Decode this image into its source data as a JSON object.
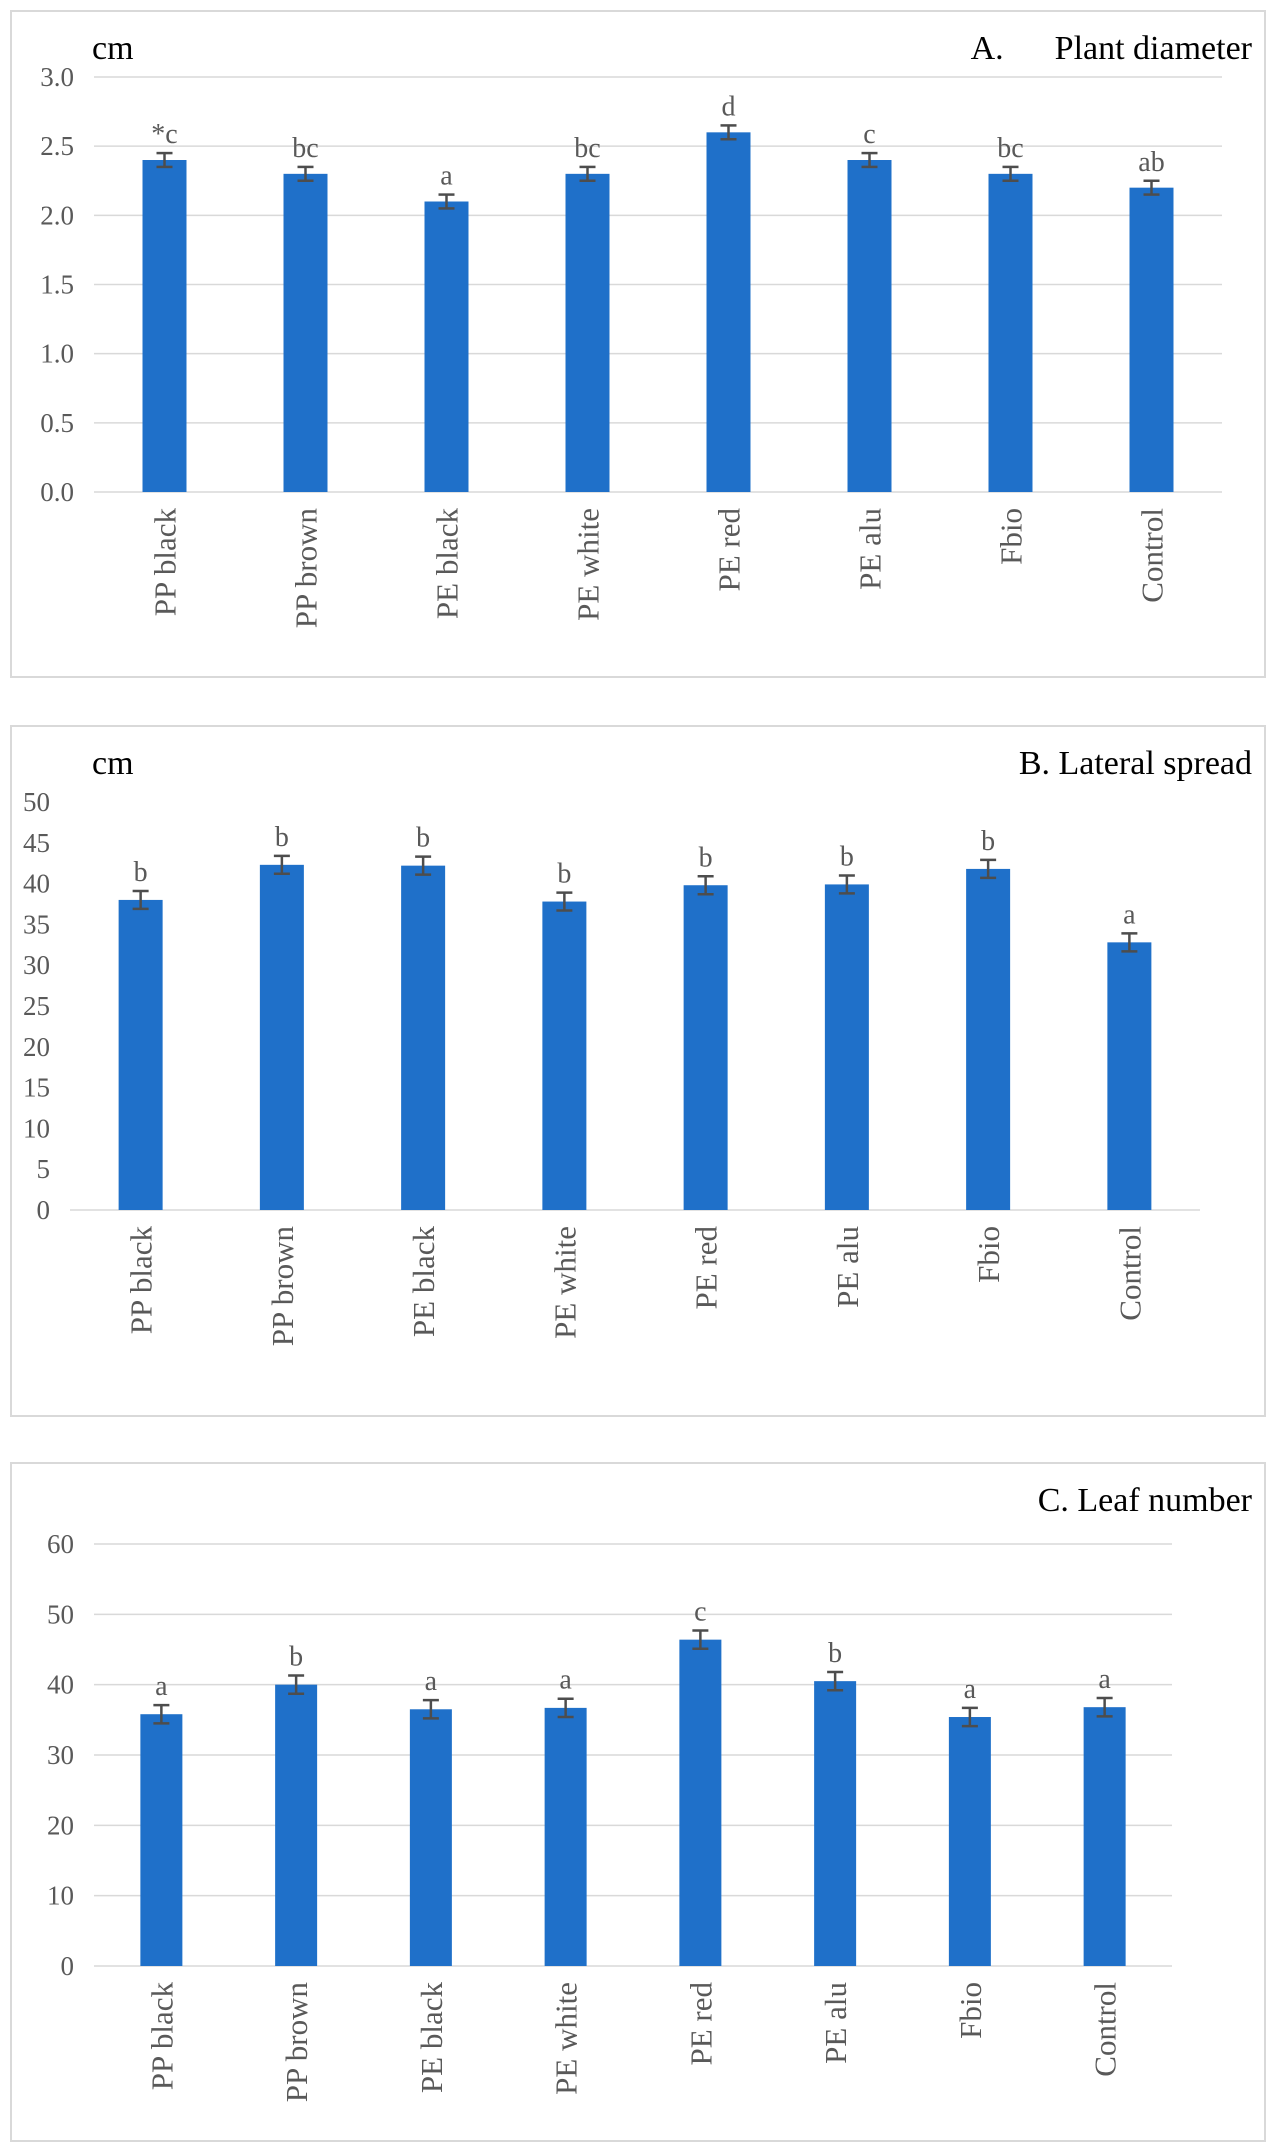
{
  "colors": {
    "bar": "#1f70c9",
    "error_bar": "#4d4d4d",
    "grid": "#d9d9d9",
    "text": "#595959",
    "title": "#000000"
  },
  "chart_data": [
    {
      "type": "bar",
      "title": "A.      Plant diameter",
      "ylabel": "cm",
      "categories": [
        "PP black",
        "PP brown",
        "PE black",
        "PE white",
        "PE red",
        "PE alu",
        "Fbio",
        "Control"
      ],
      "values": [
        2.4,
        2.3,
        2.1,
        2.3,
        2.6,
        2.4,
        2.3,
        2.2
      ],
      "errors": [
        0.05,
        0.05,
        0.05,
        0.05,
        0.05,
        0.05,
        0.05,
        0.05
      ],
      "letters": [
        "*c",
        "bc",
        "a",
        "bc",
        "d",
        "c",
        "bc",
        "ab"
      ],
      "ylim": [
        0,
        3.0
      ],
      "yticks": [
        "0.0",
        "0.5",
        "1.0",
        "1.5",
        "2.0",
        "2.5",
        "3.0"
      ],
      "grid": true
    },
    {
      "type": "bar",
      "title": "B. Lateral spread",
      "ylabel": "cm",
      "categories": [
        "PP black",
        "PP brown",
        "PE black",
        "PE white",
        "PE red",
        "PE alu",
        "Fbio",
        "Control"
      ],
      "values": [
        38.0,
        42.3,
        42.2,
        37.8,
        39.8,
        39.9,
        41.8,
        32.8
      ],
      "errors": [
        1.1,
        1.1,
        1.1,
        1.1,
        1.1,
        1.1,
        1.1,
        1.1
      ],
      "letters": [
        "b",
        "b",
        "b",
        "b",
        "b",
        "b",
        "b",
        "a"
      ],
      "ylim": [
        0,
        50
      ],
      "yticks": [
        "0",
        "5",
        "10",
        "15",
        "20",
        "25",
        "30",
        "35",
        "40",
        "45",
        "50"
      ],
      "grid": false
    },
    {
      "type": "bar",
      "title": "C. Leaf number",
      "ylabel": "",
      "categories": [
        "PP black",
        "PP brown",
        "PE black",
        "PE white",
        "PE red",
        "PE alu",
        "Fbio",
        "Control"
      ],
      "values": [
        35.8,
        40.0,
        36.5,
        36.7,
        46.4,
        40.5,
        35.4,
        36.8
      ],
      "errors": [
        1.3,
        1.3,
        1.3,
        1.3,
        1.3,
        1.3,
        1.3,
        1.3
      ],
      "letters": [
        "a",
        "b",
        "a",
        "a",
        "c",
        "b",
        "a",
        "a"
      ],
      "ylim": [
        0,
        60
      ],
      "yticks": [
        "0",
        "10",
        "20",
        "30",
        "40",
        "50",
        "60"
      ],
      "grid": true
    }
  ]
}
